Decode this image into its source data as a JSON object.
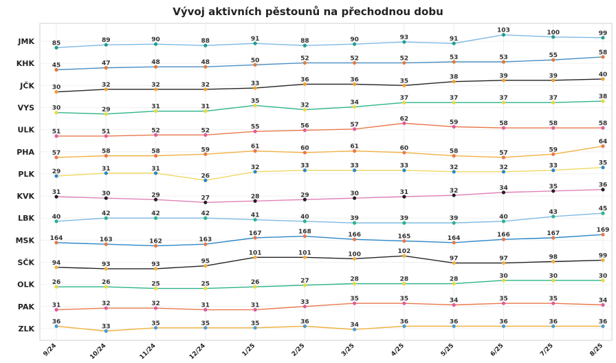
{
  "chart_data": {
    "type": "line",
    "title": "Vývoj aktivních pěstounů na přechodnou dobu",
    "xlabel": "",
    "ylabel": "",
    "grid": true,
    "categories": [
      "9/24",
      "10/24",
      "11/24",
      "12/24",
      "1/25",
      "2/25",
      "3/25",
      "4/25",
      "5/25",
      "6/25",
      "7/25",
      "8/25"
    ],
    "series": [
      {
        "name": "JMK",
        "color": "#7fb9e3",
        "marker": "#1f9e89",
        "values": [
          85,
          89,
          90,
          88,
          91,
          88,
          90,
          93,
          91,
          103,
          100,
          99
        ]
      },
      {
        "name": "KHK",
        "color": "#4a8fc4",
        "marker": "#e07b39",
        "values": [
          45,
          47,
          48,
          48,
          50,
          52,
          52,
          52,
          53,
          53,
          55,
          58
        ]
      },
      {
        "name": "JČK",
        "color": "#222222",
        "marker": "#f0a030",
        "values": [
          30,
          32,
          32,
          32,
          33,
          36,
          36,
          35,
          38,
          39,
          39,
          40
        ]
      },
      {
        "name": "VYS",
        "color": "#2ab38a",
        "marker": "#e8d840",
        "values": [
          30,
          29,
          31,
          31,
          35,
          32,
          34,
          37,
          37,
          37,
          37,
          38
        ]
      },
      {
        "name": "ULK",
        "color": "#e8784a",
        "marker": "#e05aa0",
        "values": [
          51,
          51,
          52,
          52,
          55,
          56,
          57,
          62,
          59,
          58,
          58,
          58
        ]
      },
      {
        "name": "PHA",
        "color": "#f0b040",
        "marker": "#e8784a",
        "values": [
          57,
          58,
          58,
          59,
          61,
          60,
          61,
          60,
          58,
          57,
          59,
          64
        ]
      },
      {
        "name": "PLK",
        "color": "#f0d860",
        "marker": "#2a86c8",
        "values": [
          29,
          31,
          31,
          26,
          32,
          33,
          33,
          33,
          32,
          32,
          33,
          35
        ]
      },
      {
        "name": "KVK",
        "color": "#e080b8",
        "marker": "#222222",
        "values": [
          31,
          30,
          29,
          27,
          28,
          29,
          30,
          31,
          32,
          34,
          35,
          36
        ]
      },
      {
        "name": "LBK",
        "color": "#7fb9e3",
        "marker": "#2ab38a",
        "values": [
          40,
          42,
          42,
          42,
          41,
          40,
          39,
          39,
          39,
          40,
          43,
          45
        ]
      },
      {
        "name": "MSK",
        "color": "#2a86c8",
        "marker": "#e8784a",
        "values": [
          164,
          163,
          162,
          163,
          167,
          168,
          166,
          165,
          164,
          166,
          167,
          169
        ]
      },
      {
        "name": "SČK",
        "color": "#222222",
        "marker": "#f0b040",
        "values": [
          94,
          93,
          93,
          95,
          101,
          101,
          100,
          102,
          97,
          97,
          98,
          99
        ]
      },
      {
        "name": "OLK",
        "color": "#2ab38a",
        "marker": "#e8d840",
        "values": [
          26,
          26,
          25,
          25,
          26,
          27,
          28,
          28,
          28,
          30,
          30,
          30
        ]
      },
      {
        "name": "PAK",
        "color": "#e8784a",
        "marker": "#e05aa0",
        "values": [
          31,
          32,
          32,
          31,
          31,
          33,
          35,
          35,
          34,
          35,
          35,
          34
        ]
      },
      {
        "name": "ZLK",
        "color": "#f0b040",
        "marker": "#4a9bd4",
        "values": [
          36,
          33,
          35,
          35,
          35,
          36,
          34,
          36,
          36,
          36,
          36,
          36
        ]
      }
    ]
  }
}
